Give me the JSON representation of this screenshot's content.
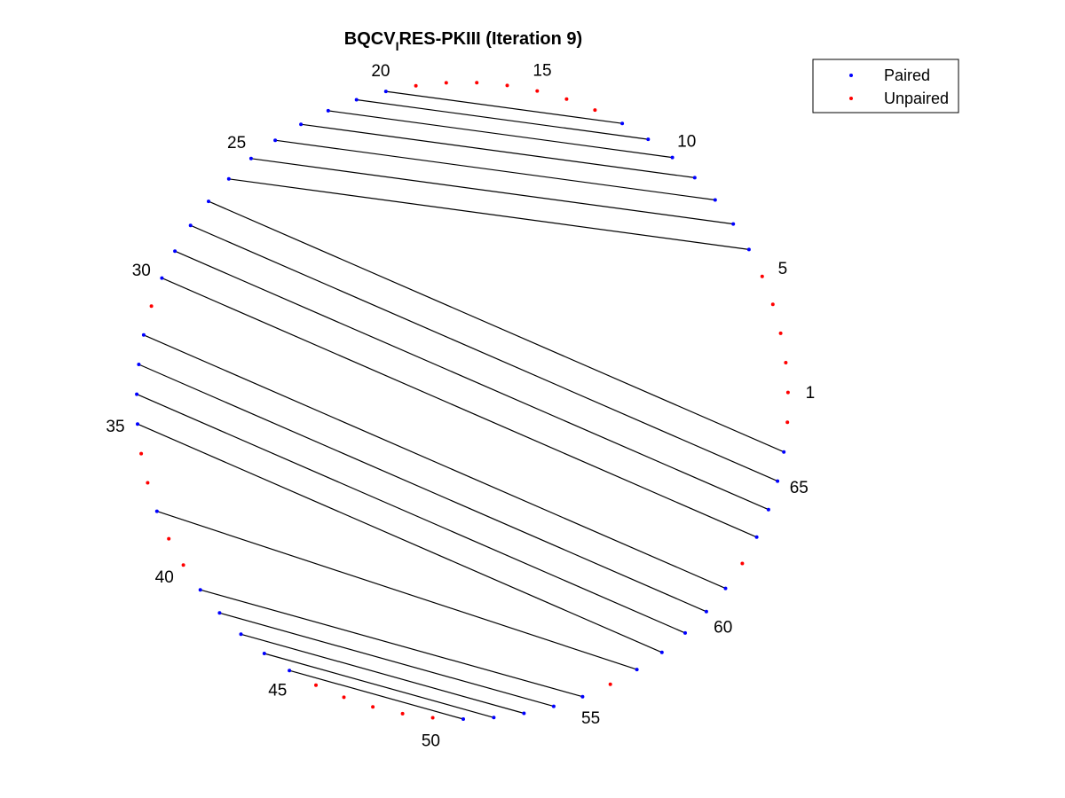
{
  "title": {
    "main": "BQCV",
    "subscript": "I",
    "rest": "RES-PKIII (Iteration 9)"
  },
  "legend": {
    "position": "top-right",
    "paired_label": "Paired",
    "unpaired_label": "Unpaired"
  },
  "colors": {
    "paired": "#0000ff",
    "unpaired": "#ff0000",
    "chord": "#000000"
  },
  "chart_data": {
    "type": "arc-diagram",
    "sequence_length": 67,
    "position_labels": [
      1,
      5,
      10,
      15,
      20,
      25,
      30,
      35,
      40,
      45,
      50,
      55,
      60,
      65
    ],
    "pairs": [
      [
        6,
        26
      ],
      [
        7,
        25
      ],
      [
        8,
        24
      ],
      [
        9,
        23
      ],
      [
        10,
        22
      ],
      [
        11,
        21
      ],
      [
        12,
        20
      ],
      [
        27,
        66
      ],
      [
        28,
        65
      ],
      [
        29,
        64
      ],
      [
        30,
        63
      ],
      [
        32,
        61
      ],
      [
        33,
        60
      ],
      [
        34,
        59
      ],
      [
        35,
        58
      ],
      [
        38,
        57
      ],
      [
        41,
        55
      ],
      [
        42,
        54
      ],
      [
        43,
        53
      ],
      [
        44,
        52
      ],
      [
        45,
        51
      ]
    ],
    "unpaired": [
      1,
      2,
      3,
      4,
      5,
      13,
      14,
      15,
      16,
      17,
      18,
      19,
      31,
      36,
      37,
      39,
      40,
      46,
      47,
      48,
      49,
      50,
      56,
      62,
      67
    ]
  }
}
